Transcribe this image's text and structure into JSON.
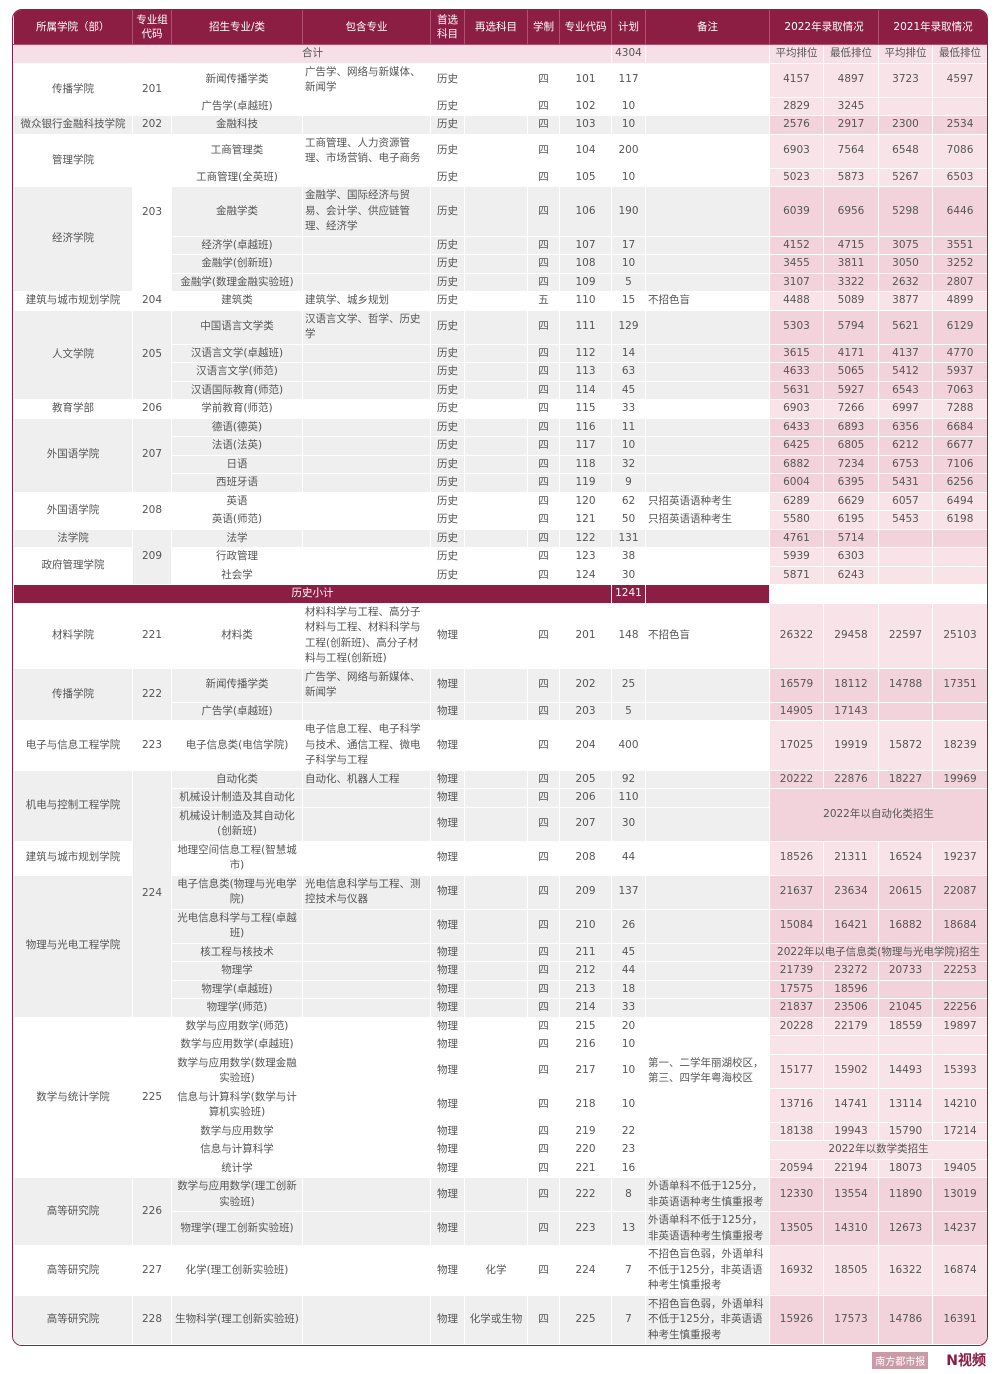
{
  "colors": {
    "header": "#8b1e42",
    "score_tint": "#f2d3dc",
    "row_grey": "#efefef"
  },
  "headers": {
    "college": "所属学院（部）",
    "group": "专业组代码",
    "major": "招生专业/类",
    "includes": "包含专业",
    "first": "首选科目",
    "second": "再选科目",
    "years": "学制",
    "code": "专业代码",
    "plan": "计划",
    "note": "备注",
    "y2022": "2022年录取情况",
    "y2021": "2021年录取情况"
  },
  "sub_headers": [
    "平均排位",
    "最低排位",
    "平均排位",
    "最低排位"
  ],
  "total": {
    "label": "合计",
    "plan": "4304"
  },
  "history_subtotal": {
    "label": "历史小计",
    "plan": "1241"
  },
  "history_rows": [
    [
      "传播学院",
      "201",
      "新闻传播学类",
      "广告学、网络与新媒体、新闻学",
      "历史",
      "",
      "四",
      "101",
      "117",
      "",
      "4157",
      "4897",
      "3723",
      "4597"
    ],
    [
      null,
      null,
      "广告学(卓越班)",
      "",
      "历史",
      "",
      "四",
      "102",
      "10",
      "",
      "2829",
      "3245",
      "",
      ""
    ],
    [
      "微众银行金融科技学院",
      "202",
      "金融科技",
      "",
      "历史",
      "",
      "四",
      "103",
      "10",
      "",
      "2576",
      "2917",
      "2300",
      "2534"
    ],
    [
      "管理学院",
      "203",
      "工商管理类",
      "工商管理、人力资源管理、市场营销、电子商务",
      "历史",
      "",
      "四",
      "104",
      "200",
      "",
      "6903",
      "7564",
      "6548",
      "7086"
    ],
    [
      null,
      null,
      "工商管理(全英班)",
      "",
      "历史",
      "",
      "四",
      "105",
      "10",
      "",
      "5023",
      "5873",
      "5267",
      "6503"
    ],
    [
      "经济学院",
      null,
      "金融学类",
      "金融学、国际经济与贸易、会计学、供应链管理、经济学",
      "历史",
      "",
      "四",
      "106",
      "190",
      "",
      "6039",
      "6956",
      "5298",
      "6446"
    ],
    [
      null,
      null,
      "经济学(卓越班)",
      "",
      "历史",
      "",
      "四",
      "107",
      "17",
      "",
      "4152",
      "4715",
      "3075",
      "3551"
    ],
    [
      null,
      null,
      "金融学(创新班)",
      "",
      "历史",
      "",
      "四",
      "108",
      "10",
      "",
      "3455",
      "3811",
      "3050",
      "3252"
    ],
    [
      null,
      null,
      "金融学(数理金融实验班)",
      "",
      "历史",
      "",
      "四",
      "109",
      "5",
      "",
      "3107",
      "3322",
      "2632",
      "2807"
    ],
    [
      "建筑与城市规划学院",
      "204",
      "建筑类",
      "建筑学、城乡规划",
      "历史",
      "",
      "五",
      "110",
      "15",
      "不招色盲",
      "4488",
      "5089",
      "3877",
      "4899"
    ],
    [
      "人文学院",
      "205",
      "中国语言文学类",
      "汉语言文学、哲学、历史学",
      "历史",
      "",
      "四",
      "111",
      "129",
      "",
      "5303",
      "5794",
      "5621",
      "6129"
    ],
    [
      null,
      null,
      "汉语言文学(卓越班)",
      "",
      "历史",
      "",
      "四",
      "112",
      "14",
      "",
      "3615",
      "4171",
      "4137",
      "4770"
    ],
    [
      null,
      null,
      "汉语言文学(师范)",
      "",
      "历史",
      "",
      "四",
      "113",
      "63",
      "",
      "4633",
      "5065",
      "5412",
      "5937"
    ],
    [
      null,
      null,
      "汉语国际教育(师范)",
      "",
      "历史",
      "",
      "四",
      "114",
      "45",
      "",
      "5631",
      "5927",
      "6543",
      "7063"
    ],
    [
      "教育学部",
      "206",
      "学前教育(师范)",
      "",
      "历史",
      "",
      "四",
      "115",
      "33",
      "",
      "6903",
      "7266",
      "6997",
      "7288"
    ],
    [
      "外国语学院",
      "207",
      "德语(德英)",
      "",
      "历史",
      "",
      "四",
      "116",
      "11",
      "",
      "6433",
      "6893",
      "6356",
      "6684"
    ],
    [
      null,
      null,
      "法语(法英)",
      "",
      "历史",
      "",
      "四",
      "117",
      "10",
      "",
      "6425",
      "6805",
      "6212",
      "6677"
    ],
    [
      null,
      null,
      "日语",
      "",
      "历史",
      "",
      "四",
      "118",
      "32",
      "",
      "6882",
      "7234",
      "6753",
      "7106"
    ],
    [
      null,
      null,
      "西班牙语",
      "",
      "历史",
      "",
      "四",
      "119",
      "9",
      "",
      "6004",
      "6395",
      "5431",
      "6256"
    ],
    [
      "外国语学院",
      "208",
      "英语",
      "",
      "历史",
      "",
      "四",
      "120",
      "62",
      "只招英语语种考生",
      "6289",
      "6629",
      "6057",
      "6494"
    ],
    [
      null,
      null,
      "英语(师范)",
      "",
      "历史",
      "",
      "四",
      "121",
      "50",
      "只招英语语种考生",
      "5580",
      "6195",
      "5453",
      "6198"
    ],
    [
      "法学院",
      "209",
      "法学",
      "",
      "历史",
      "",
      "四",
      "122",
      "131",
      "",
      "4761",
      "5714",
      "",
      ""
    ],
    [
      "政府管理学院",
      null,
      "行政管理",
      "",
      "历史",
      "",
      "四",
      "123",
      "38",
      "",
      "5939",
      "6303",
      "",
      ""
    ],
    [
      null,
      null,
      "社会学",
      "",
      "历史",
      "",
      "四",
      "124",
      "30",
      "",
      "5871",
      "6243",
      "",
      ""
    ]
  ],
  "physics_rows": [
    [
      "材料学院",
      "221",
      "材料类",
      "材料科学与工程、高分子材料与工程、材料科学与工程(创新班)、高分子材料与工程(创新班)",
      "物理",
      "",
      "四",
      "201",
      "148",
      "不招色盲",
      "26322",
      "29458",
      "22597",
      "25103"
    ],
    [
      "传播学院",
      "222",
      "新闻传播学类",
      "广告学、网络与新媒体、新闻学",
      "物理",
      "",
      "四",
      "202",
      "25",
      "",
      "16579",
      "18112",
      "14788",
      "17351"
    ],
    [
      null,
      null,
      "广告学(卓越班)",
      "",
      "物理",
      "",
      "四",
      "203",
      "5",
      "",
      "14905",
      "17143",
      "",
      ""
    ],
    [
      "电子与信息工程学院",
      "223",
      "电子信息类(电信学院)",
      "电子信息工程、电子科学与技术、通信工程、微电子科学与工程",
      "物理",
      "",
      "四",
      "204",
      "400",
      "",
      "17025",
      "19919",
      "15872",
      "18239"
    ],
    [
      "机电与控制工程学院",
      "224",
      "自动化类",
      "自动化、机器人工程",
      "物理",
      "",
      "四",
      "205",
      "92",
      "",
      "20222",
      "22876",
      "18227",
      "19969"
    ],
    [
      null,
      null,
      "机械设计制造及其自动化",
      "",
      "物理",
      "",
      "四",
      "206",
      "110",
      "",
      "2022年以自动化类招生"
    ],
    [
      null,
      null,
      "机械设计制造及其自动化(创新班)",
      "",
      "物理",
      "",
      "四",
      "207",
      "30",
      "",
      null
    ],
    [
      "建筑与城市规划学院",
      null,
      "地理空间信息工程(智慧城市)",
      "",
      "物理",
      "",
      "四",
      "208",
      "44",
      "",
      "18526",
      "21311",
      "16524",
      "19237"
    ],
    [
      "物理与光电工程学院",
      null,
      "电子信息类(物理与光电学院)",
      "光电信息科学与工程、测控技术与仪器",
      "物理",
      "",
      "四",
      "209",
      "137",
      "",
      "21637",
      "23634",
      "20615",
      "22087"
    ],
    [
      null,
      null,
      "光电信息科学与工程(卓越班)",
      "",
      "物理",
      "",
      "四",
      "210",
      "26",
      "",
      "15084",
      "16421",
      "16882",
      "18684"
    ],
    [
      null,
      null,
      "核工程与核技术",
      "",
      "物理",
      "",
      "四",
      "211",
      "45",
      "",
      "2022年以电子信息类(物理与光电学院)招生"
    ],
    [
      null,
      null,
      "物理学",
      "",
      "物理",
      "",
      "四",
      "212",
      "44",
      "",
      "21739",
      "23272",
      "20733",
      "22253"
    ],
    [
      null,
      null,
      "物理学(卓越班)",
      "",
      "物理",
      "",
      "四",
      "213",
      "18",
      "",
      "17575",
      "18596",
      "",
      ""
    ],
    [
      null,
      null,
      "物理学(师范)",
      "",
      "物理",
      "",
      "四",
      "214",
      "33",
      "",
      "21837",
      "23506",
      "21045",
      "22256"
    ],
    [
      "数学与统计学院",
      "225",
      "数学与应用数学(师范)",
      "",
      "物理",
      "",
      "四",
      "215",
      "20",
      "",
      "20228",
      "22179",
      "18559",
      "19897"
    ],
    [
      null,
      null,
      "数学与应用数学(卓越班)",
      "",
      "物理",
      "",
      "四",
      "216",
      "10",
      "",
      "",
      "",
      "",
      ""
    ],
    [
      null,
      null,
      "数学与应用数学(数理金融实验班)",
      "",
      "物理",
      "",
      "四",
      "217",
      "10",
      "第一、二学年丽湖校区，第三、四学年粤海校区",
      "15177",
      "15902",
      "14493",
      "15393"
    ],
    [
      null,
      null,
      "信息与计算科学(数学与计算机实验班)",
      "",
      "物理",
      "",
      "四",
      "218",
      "10",
      "",
      "13716",
      "14741",
      "13114",
      "14210"
    ],
    [
      null,
      null,
      "数学与应用数学",
      "",
      "物理",
      "",
      "四",
      "219",
      "22",
      "",
      "18138",
      "19943",
      "15790",
      "17214"
    ],
    [
      null,
      null,
      "信息与计算科学",
      "",
      "物理",
      "",
      "四",
      "220",
      "23",
      "",
      "2022年以数学类招生"
    ],
    [
      null,
      null,
      "统计学",
      "",
      "物理",
      "",
      "四",
      "221",
      "16",
      "",
      "20594",
      "22194",
      "18073",
      "19405"
    ],
    [
      "高等研究院",
      "226",
      "数学与应用数学(理工创新实验班)",
      "",
      "物理",
      "",
      "四",
      "222",
      "8",
      "外语单科不低于125分，非英语语种考生慎重报考",
      "12330",
      "13554",
      "11890",
      "13019"
    ],
    [
      null,
      null,
      "物理学(理工创新实验班)",
      "",
      "物理",
      "",
      "四",
      "223",
      "13",
      "外语单科不低于125分，非英语语种考生慎重报考",
      "13505",
      "14310",
      "12673",
      "14237"
    ],
    [
      "高等研究院",
      "227",
      "化学(理工创新实验班)",
      "",
      "物理",
      "化学",
      "四",
      "224",
      "7",
      "不招色盲色弱，外语单科不低于125分，非英语语种考生慎重报考",
      "16932",
      "18505",
      "16322",
      "16874"
    ],
    [
      "高等研究院",
      "228",
      "生物科学(理工创新实验班)",
      "",
      "物理",
      "化学或生物",
      "四",
      "225",
      "7",
      "不招色盲色弱，外语单科不低于125分，非英语语种考生慎重报考",
      "15926",
      "17573",
      "14786",
      "16391"
    ]
  ],
  "watermark": {
    "paper": "南方都市报",
    "video": "N视频"
  }
}
